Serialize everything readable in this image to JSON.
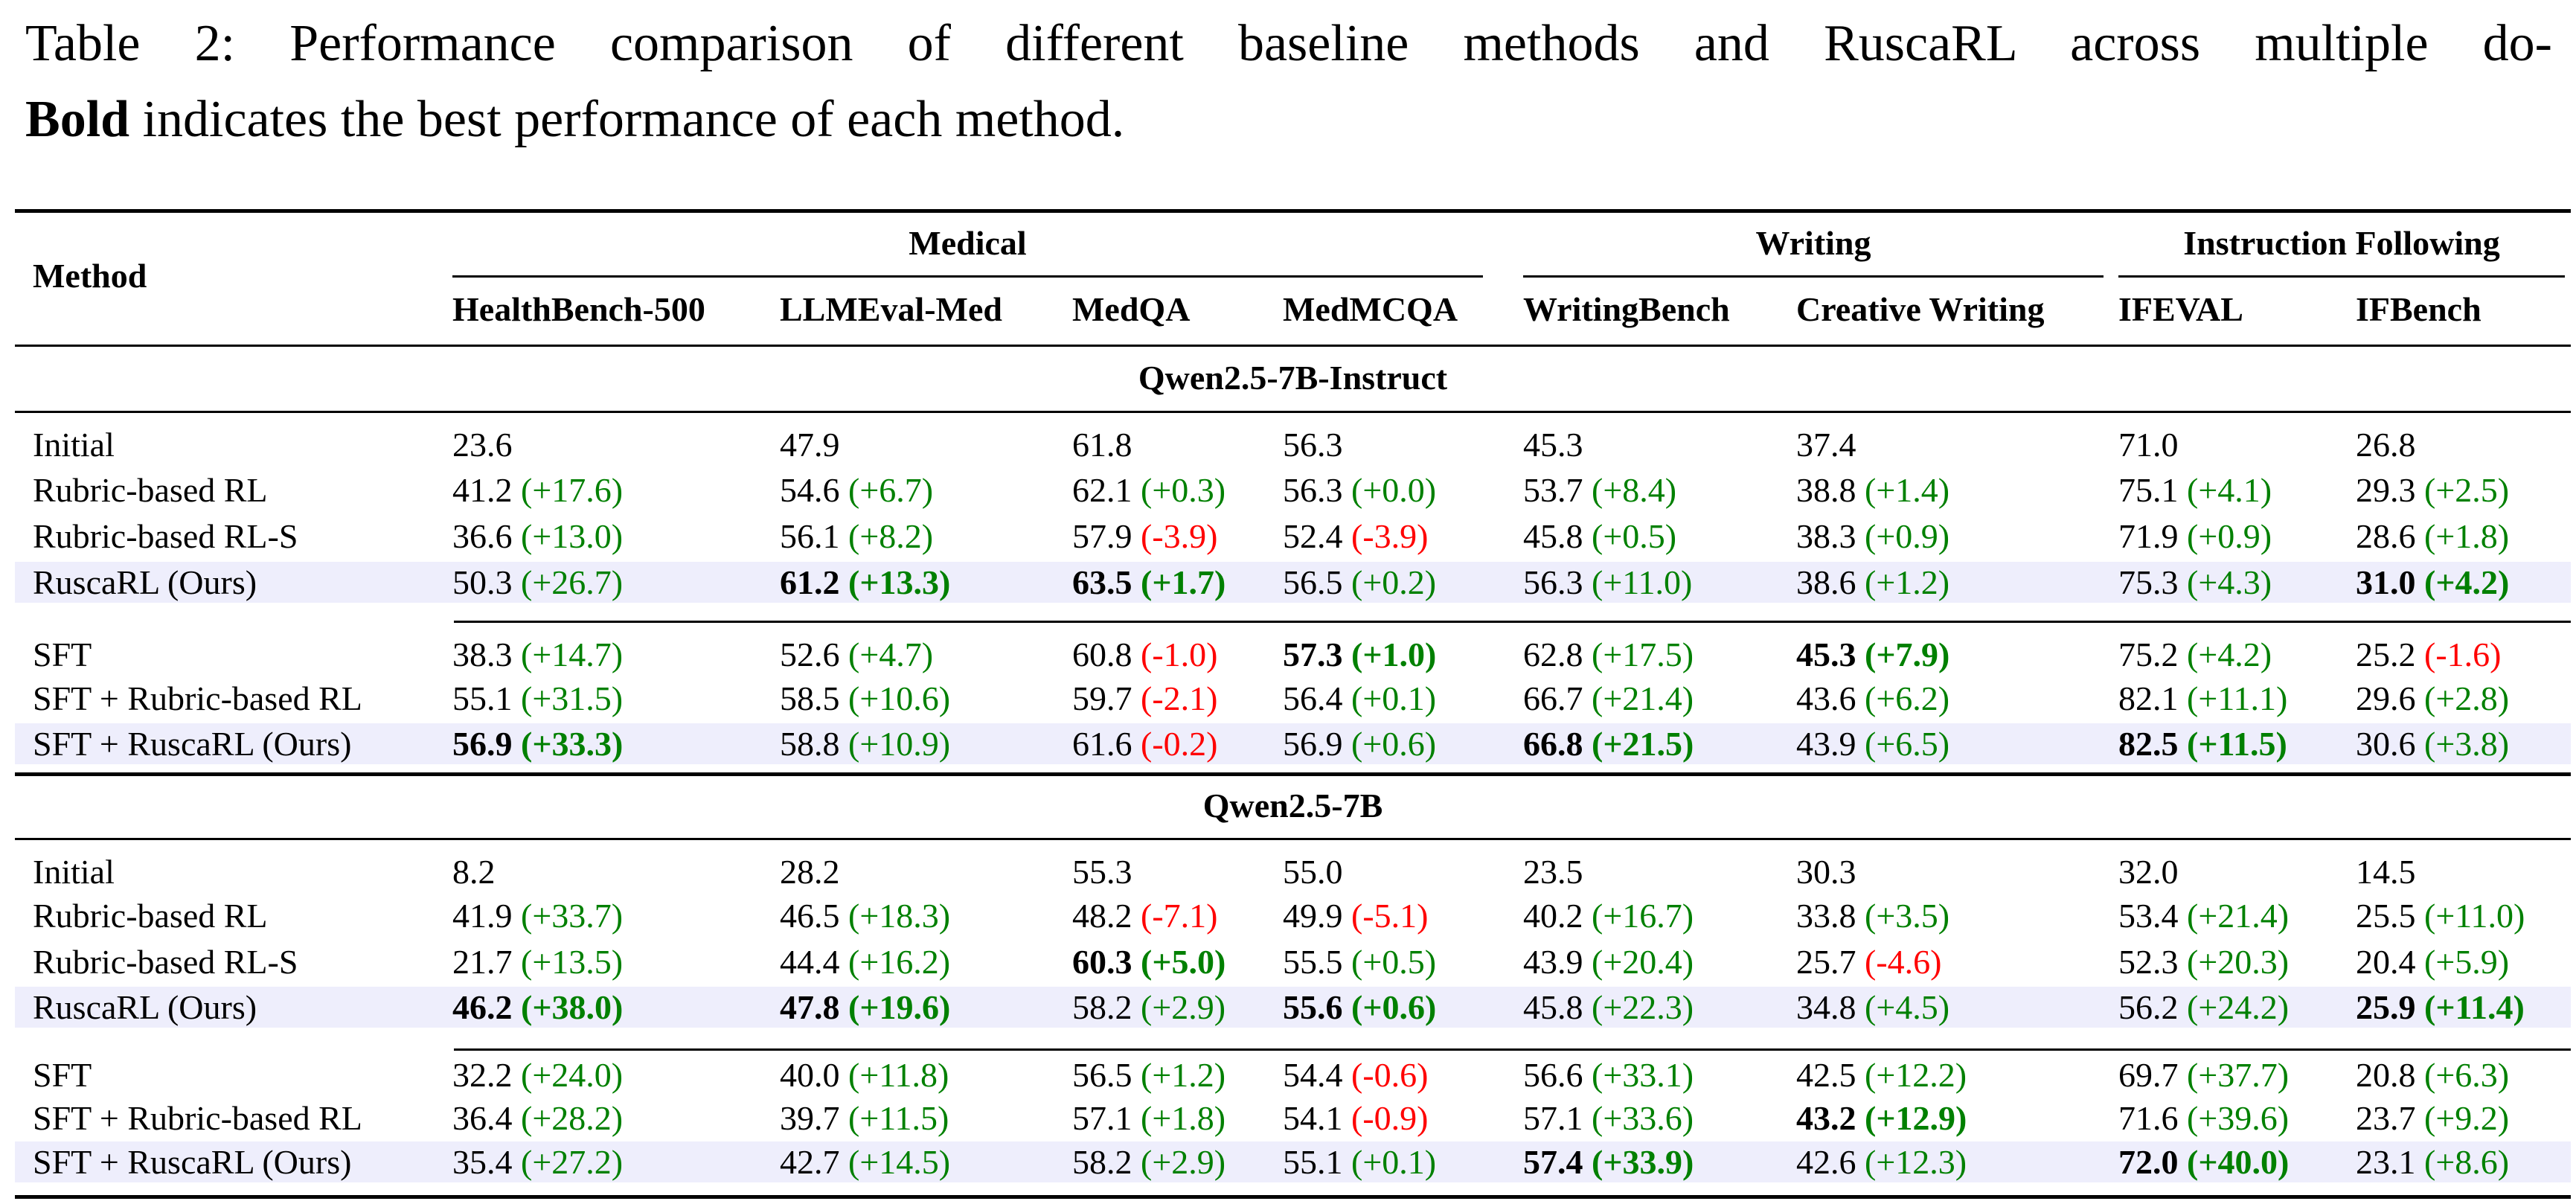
{
  "caption": {
    "line1": "Table 2: Performance comparison of different baseline methods and RuscaRL across multiple do-",
    "line2_bold": "Bold",
    "line2_rest": " indicates the best performance of each method."
  },
  "header": {
    "method": "Method",
    "domains": [
      "Medical",
      "Writing",
      "Instruction Following"
    ],
    "columns": [
      "HealthBench-500",
      "LLMEval-Med",
      "MedQA",
      "MedMCQA",
      "WritingBench",
      "Creative Writing",
      "IFEVAL",
      "IFBench"
    ]
  },
  "colors": {
    "positive": "#008000",
    "negative": "#ff0000",
    "highlight": "#eeeefc"
  },
  "groups": [
    {
      "model": "Qwen2.5-7B-Instruct",
      "rows": [
        {
          "method": "Initial",
          "cells": [
            {
              "v": "23.6"
            },
            {
              "v": "47.9"
            },
            {
              "v": "61.8"
            },
            {
              "v": "56.3"
            },
            {
              "v": "45.3"
            },
            {
              "v": "37.4"
            },
            {
              "v": "71.0"
            },
            {
              "v": "26.8"
            }
          ]
        },
        {
          "method": "Rubric-based RL",
          "cells": [
            {
              "v": "41.2",
              "d": "(+17.6)"
            },
            {
              "v": "54.6",
              "d": "(+6.7)"
            },
            {
              "v": "62.1",
              "d": "(+0.3)"
            },
            {
              "v": "56.3",
              "d": "(+0.0)"
            },
            {
              "v": "53.7",
              "d": "(+8.4)"
            },
            {
              "v": "38.8",
              "d": "(+1.4)"
            },
            {
              "v": "75.1",
              "d": "(+4.1)"
            },
            {
              "v": "29.3",
              "d": "(+2.5)"
            }
          ]
        },
        {
          "method": "Rubric-based RL-S",
          "cells": [
            {
              "v": "36.6",
              "d": "(+13.0)"
            },
            {
              "v": "56.1",
              "d": "(+8.2)"
            },
            {
              "v": "57.9",
              "d": "(-3.9)"
            },
            {
              "v": "52.4",
              "d": "(-3.9)"
            },
            {
              "v": "45.8",
              "d": "(+0.5)"
            },
            {
              "v": "38.3",
              "d": "(+0.9)"
            },
            {
              "v": "71.9",
              "d": "(+0.9)"
            },
            {
              "v": "28.6",
              "d": "(+1.8)"
            }
          ]
        },
        {
          "method": "RuscaRL (Ours)",
          "highlight": true,
          "cells": [
            {
              "v": "50.3",
              "d": "(+26.7)"
            },
            {
              "v": "61.2",
              "d": "(+13.3)",
              "best": true
            },
            {
              "v": "63.5",
              "d": "(+1.7)",
              "best": true
            },
            {
              "v": "56.5",
              "d": "(+0.2)"
            },
            {
              "v": "56.3",
              "d": "(+11.0)"
            },
            {
              "v": "38.6",
              "d": "(+1.2)"
            },
            {
              "v": "75.3",
              "d": "(+4.3)"
            },
            {
              "v": "31.0",
              "d": "(+4.2)",
              "best": true
            }
          ]
        },
        {
          "method": "SFT",
          "cells": [
            {
              "v": "38.3",
              "d": "(+14.7)"
            },
            {
              "v": "52.6",
              "d": "(+4.7)"
            },
            {
              "v": "60.8",
              "d": "(-1.0)"
            },
            {
              "v": "57.3",
              "d": "(+1.0)",
              "best": true
            },
            {
              "v": "62.8",
              "d": "(+17.5)"
            },
            {
              "v": "45.3",
              "d": "(+7.9)",
              "best": true
            },
            {
              "v": "75.2",
              "d": "(+4.2)"
            },
            {
              "v": "25.2",
              "d": "(-1.6)"
            }
          ]
        },
        {
          "method": "SFT + Rubric-based RL",
          "cells": [
            {
              "v": "55.1",
              "d": "(+31.5)"
            },
            {
              "v": "58.5",
              "d": "(+10.6)"
            },
            {
              "v": "59.7",
              "d": "(-2.1)"
            },
            {
              "v": "56.4",
              "d": "(+0.1)"
            },
            {
              "v": "66.7",
              "d": "(+21.4)"
            },
            {
              "v": "43.6",
              "d": "(+6.2)"
            },
            {
              "v": "82.1",
              "d": "(+11.1)"
            },
            {
              "v": "29.6",
              "d": "(+2.8)"
            }
          ]
        },
        {
          "method": "SFT + RuscaRL (Ours)",
          "highlight": true,
          "cells": [
            {
              "v": "56.9",
              "d": "(+33.3)",
              "best": true
            },
            {
              "v": "58.8",
              "d": "(+10.9)"
            },
            {
              "v": "61.6",
              "d": "(-0.2)"
            },
            {
              "v": "56.9",
              "d": "(+0.6)"
            },
            {
              "v": "66.8",
              "d": "(+21.5)",
              "best": true
            },
            {
              "v": "43.9",
              "d": "(+6.5)"
            },
            {
              "v": "82.5",
              "d": "(+11.5)",
              "best": true
            },
            {
              "v": "30.6",
              "d": "(+3.8)"
            }
          ]
        }
      ]
    },
    {
      "model": "Qwen2.5-7B",
      "rows": [
        {
          "method": "Initial",
          "cells": [
            {
              "v": "8.2"
            },
            {
              "v": "28.2"
            },
            {
              "v": "55.3"
            },
            {
              "v": "55.0"
            },
            {
              "v": "23.5"
            },
            {
              "v": "30.3"
            },
            {
              "v": "32.0"
            },
            {
              "v": "14.5"
            }
          ]
        },
        {
          "method": "Rubric-based RL",
          "cells": [
            {
              "v": "41.9",
              "d": "(+33.7)"
            },
            {
              "v": "46.5",
              "d": "(+18.3)"
            },
            {
              "v": "48.2",
              "d": "(-7.1)"
            },
            {
              "v": "49.9",
              "d": "(-5.1)"
            },
            {
              "v": "40.2",
              "d": "(+16.7)"
            },
            {
              "v": "33.8",
              "d": "(+3.5)"
            },
            {
              "v": "53.4",
              "d": "(+21.4)"
            },
            {
              "v": "25.5",
              "d": "(+11.0)"
            }
          ]
        },
        {
          "method": "Rubric-based RL-S",
          "cells": [
            {
              "v": "21.7",
              "d": "(+13.5)"
            },
            {
              "v": "44.4",
              "d": "(+16.2)"
            },
            {
              "v": "60.3",
              "d": "(+5.0)",
              "best": true
            },
            {
              "v": "55.5",
              "d": "(+0.5)"
            },
            {
              "v": "43.9",
              "d": "(+20.4)"
            },
            {
              "v": "25.7",
              "d": "(-4.6)"
            },
            {
              "v": "52.3",
              "d": "(+20.3)"
            },
            {
              "v": "20.4",
              "d": "(+5.9)"
            }
          ]
        },
        {
          "method": "RuscaRL (Ours)",
          "highlight": true,
          "cells": [
            {
              "v": "46.2",
              "d": "(+38.0)",
              "best": true
            },
            {
              "v": "47.8",
              "d": "(+19.6)",
              "best": true
            },
            {
              "v": "58.2",
              "d": "(+2.9)"
            },
            {
              "v": "55.6",
              "d": "(+0.6)",
              "best": true
            },
            {
              "v": "45.8",
              "d": "(+22.3)"
            },
            {
              "v": "34.8",
              "d": "(+4.5)"
            },
            {
              "v": "56.2",
              "d": "(+24.2)"
            },
            {
              "v": "25.9",
              "d": "(+11.4)",
              "best": true
            }
          ]
        },
        {
          "method": "SFT",
          "cells": [
            {
              "v": "32.2",
              "d": "(+24.0)"
            },
            {
              "v": "40.0",
              "d": "(+11.8)"
            },
            {
              "v": "56.5",
              "d": "(+1.2)"
            },
            {
              "v": "54.4",
              "d": "(-0.6)"
            },
            {
              "v": "56.6",
              "d": "(+33.1)"
            },
            {
              "v": "42.5",
              "d": "(+12.2)"
            },
            {
              "v": "69.7",
              "d": "(+37.7)"
            },
            {
              "v": "20.8",
              "d": "(+6.3)"
            }
          ]
        },
        {
          "method": "SFT + Rubric-based RL",
          "cells": [
            {
              "v": "36.4",
              "d": "(+28.2)"
            },
            {
              "v": "39.7",
              "d": "(+11.5)"
            },
            {
              "v": "57.1",
              "d": "(+1.8)"
            },
            {
              "v": "54.1",
              "d": "(-0.9)"
            },
            {
              "v": "57.1",
              "d": "(+33.6)"
            },
            {
              "v": "43.2",
              "d": "(+12.9)",
              "best": true
            },
            {
              "v": "71.6",
              "d": "(+39.6)"
            },
            {
              "v": "23.7",
              "d": "(+9.2)"
            }
          ]
        },
        {
          "method": "SFT + RuscaRL (Ours)",
          "highlight": true,
          "cells": [
            {
              "v": "35.4",
              "d": "(+27.2)"
            },
            {
              "v": "42.7",
              "d": "(+14.5)"
            },
            {
              "v": "58.2",
              "d": "(+2.9)"
            },
            {
              "v": "55.1",
              "d": "(+0.1)"
            },
            {
              "v": "57.4",
              "d": "(+33.9)",
              "best": true
            },
            {
              "v": "42.6",
              "d": "(+12.3)"
            },
            {
              "v": "72.0",
              "d": "(+40.0)",
              "best": true
            },
            {
              "v": "23.1",
              "d": "(+8.6)"
            }
          ]
        }
      ]
    }
  ]
}
